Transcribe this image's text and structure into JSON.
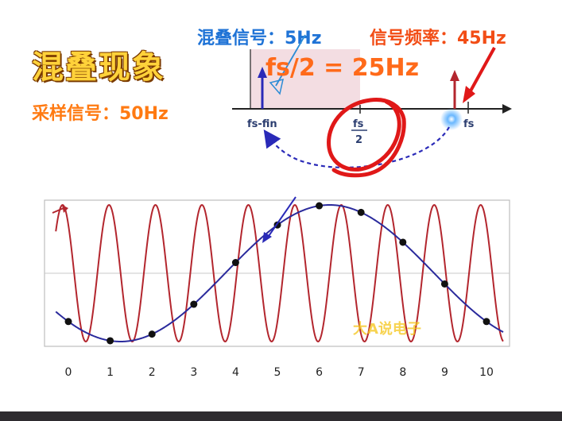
{
  "header": {
    "title": "混叠现象",
    "sampling": "采样信号：50Hz",
    "alias_label": "混叠信号：5Hz",
    "signal_label": "信号频率：45Hz",
    "nyquist": "fs/2 = 25Hz"
  },
  "spectrum": {
    "label_fs_fin": "fs-fin",
    "label_fs_half_num": "fs",
    "label_fs_half_den": "2",
    "label_fs": "fs"
  },
  "watermark": "大A说电子",
  "colors": {
    "red_wave": "#b3262e",
    "blue_wave": "#2a2a9c",
    "accent_red": "#e01818",
    "accent_orange": "#ff6a1a",
    "band": "#f3dde2"
  },
  "chart_data": {
    "type": "line",
    "x_ticks": [
      "0",
      "1",
      "2",
      "3",
      "4",
      "5",
      "6",
      "7",
      "8",
      "9",
      "10"
    ],
    "xlim": [
      -0.3,
      10.4
    ],
    "ylim": [
      -1,
      1
    ],
    "series": [
      {
        "kind": "high-frequency",
        "cycles_per_unit": 0.9,
        "phase_deg": 135
      },
      {
        "kind": "aliased",
        "cycles_per_unit": 0.1,
        "phase_deg": 225
      }
    ],
    "samples_x": [
      0,
      1,
      2,
      3,
      4,
      5,
      6,
      7,
      8,
      9,
      10
    ]
  }
}
